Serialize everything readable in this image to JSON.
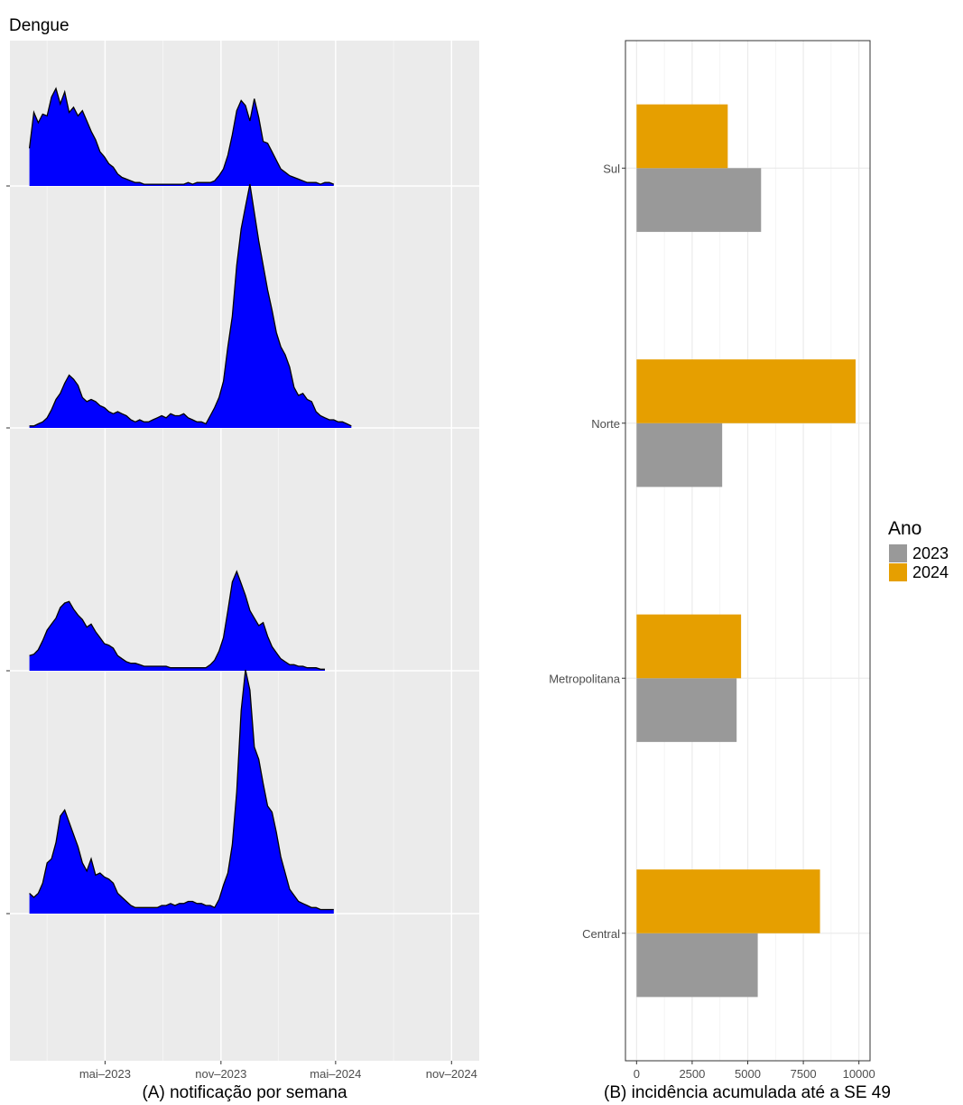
{
  "title": "Dengue",
  "chart_data": [
    {
      "type": "area",
      "panel": "A",
      "xlabel": "(A) notificação por semana",
      "x_tick_labels": [
        "mai–2023",
        "nov–2023",
        "mai–2024",
        "nov–2024"
      ],
      "x_ticks": [
        "2023-05-01",
        "2023-11-01",
        "2024-05-01",
        "2024-11-01"
      ],
      "xlim": [
        "2022-12-01",
        "2024-12-15"
      ],
      "x_start": "2023-01-01",
      "x_step_days": 7,
      "facet_order_top_to_bottom": [
        "Sul",
        "Norte",
        "Metropolitana",
        "Central"
      ],
      "facet_scales": "free_y",
      "fill_color": "#0000FF",
      "y_tick_labels_shown": false,
      "series": [
        {
          "name": "Sul",
          "values": [
            22,
            43,
            37,
            42,
            41,
            52,
            57,
            48,
            55,
            43,
            46,
            41,
            44,
            38,
            32,
            27,
            20,
            17,
            13,
            11,
            7,
            5,
            4,
            3,
            2,
            2,
            1,
            1,
            1,
            1,
            1,
            1,
            1,
            1,
            1,
            1,
            2,
            1,
            2,
            2,
            2,
            2,
            3,
            6,
            10,
            18,
            30,
            44,
            50,
            47,
            38,
            51,
            40,
            26,
            25,
            20,
            15,
            10,
            8,
            6,
            5,
            4,
            3,
            2,
            2,
            2,
            1,
            2,
            2,
            1
          ]
        },
        {
          "name": "Norte",
          "values": [
            1,
            1,
            2,
            3,
            5,
            9,
            14,
            17,
            22,
            26,
            24,
            21,
            15,
            13,
            14,
            13,
            11,
            10,
            8,
            7,
            8,
            7,
            6,
            4,
            3,
            4,
            3,
            3,
            4,
            5,
            6,
            5,
            7,
            6,
            6,
            7,
            5,
            4,
            3,
            3,
            2,
            6,
            10,
            15,
            23,
            40,
            55,
            80,
            98,
            109,
            120,
            106,
            92,
            80,
            68,
            58,
            47,
            40,
            36,
            30,
            20,
            16,
            17,
            14,
            13,
            8,
            6,
            5,
            4,
            4,
            3,
            3,
            2,
            1
          ]
        },
        {
          "name": "Metropolitana",
          "values": [
            10,
            11,
            14,
            20,
            27,
            31,
            35,
            42,
            45,
            46,
            41,
            37,
            34,
            29,
            31,
            26,
            22,
            18,
            17,
            15,
            10,
            8,
            6,
            5,
            5,
            4,
            3,
            3,
            3,
            3,
            3,
            3,
            2,
            2,
            2,
            2,
            2,
            2,
            2,
            2,
            2,
            4,
            7,
            13,
            22,
            40,
            59,
            66,
            58,
            50,
            40,
            35,
            30,
            32,
            23,
            16,
            12,
            8,
            6,
            4,
            4,
            3,
            3,
            2,
            2,
            2,
            1,
            1
          ]
        },
        {
          "name": "Central",
          "values": [
            10,
            8,
            10,
            15,
            25,
            27,
            35,
            48,
            51,
            45,
            39,
            33,
            25,
            21,
            27,
            19,
            20,
            18,
            17,
            15,
            10,
            8,
            6,
            4,
            3,
            3,
            3,
            3,
            3,
            3,
            4,
            4,
            5,
            4,
            5,
            5,
            6,
            6,
            5,
            5,
            4,
            4,
            3,
            7,
            14,
            20,
            34,
            60,
            100,
            120,
            110,
            82,
            76,
            64,
            53,
            50,
            40,
            28,
            20,
            12,
            9,
            6,
            5,
            4,
            3,
            3,
            2,
            2,
            2,
            2
          ]
        }
      ]
    },
    {
      "type": "bar",
      "panel": "B",
      "orientation": "horizontal",
      "xlabel": "(B) incidência acumulada até a SE 49",
      "categories": [
        "Central",
        "Metropolitana",
        "Norte",
        "Sul"
      ],
      "x_tick_labels": [
        "0",
        "2500",
        "5000",
        "7500",
        "10000"
      ],
      "x_ticks": [
        0,
        2500,
        5000,
        7500,
        10000
      ],
      "xlim": [
        -500,
        10500
      ],
      "grid": true,
      "legend": {
        "title": "Ano",
        "position": "right",
        "entries": [
          "2023",
          "2024"
        ]
      },
      "series": [
        {
          "name": "2023",
          "color": "#999999",
          "values": [
            5450,
            4500,
            3850,
            5600
          ]
        },
        {
          "name": "2024",
          "color": "#E69F00",
          "values": [
            8250,
            4700,
            9850,
            4100
          ]
        }
      ]
    }
  ]
}
